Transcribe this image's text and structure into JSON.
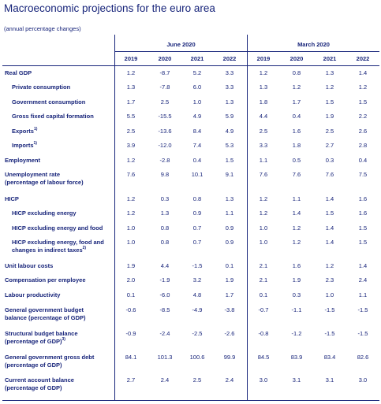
{
  "title": "Macroeconomic projections for the euro area",
  "subtitle": "(annual percentage changes)",
  "groups": [
    "June 2020",
    "March 2020"
  ],
  "years": [
    "2019",
    "2020",
    "2021",
    "2022",
    "2019",
    "2020",
    "2021",
    "2022"
  ],
  "rows": [
    {
      "label": "Real GDP",
      "values": [
        "1.2",
        "-8.7",
        "5.2",
        "3.3",
        "1.2",
        "0.8",
        "1.3",
        "1.4"
      ]
    },
    {
      "label": "Private consumption",
      "values": [
        "1.3",
        "-7.8",
        "6.0",
        "3.3",
        "1.3",
        "1.2",
        "1.2",
        "1.2"
      ]
    },
    {
      "label": "Government consumption",
      "values": [
        "1.7",
        "2.5",
        "1.0",
        "1.3",
        "1.8",
        "1.7",
        "1.5",
        "1.5"
      ]
    },
    {
      "label": "Gross fixed capital formation",
      "values": [
        "5.5",
        "-15.5",
        "4.9",
        "5.9",
        "4.4",
        "0.4",
        "1.9",
        "2.2"
      ]
    },
    {
      "label": "Exports",
      "sup": "1)",
      "values": [
        "2.5",
        "-13.6",
        "8.4",
        "4.9",
        "2.5",
        "1.6",
        "2.5",
        "2.6"
      ]
    },
    {
      "label": "Imports",
      "sup": "1)",
      "values": [
        "3.9",
        "-12.0",
        "7.4",
        "5.3",
        "3.3",
        "1.8",
        "2.7",
        "2.8"
      ]
    },
    {
      "label": "Employment",
      "values": [
        "1.2",
        "-2.8",
        "0.4",
        "1.5",
        "1.1",
        "0.5",
        "0.3",
        "0.4"
      ]
    },
    {
      "label": "Unemployment rate",
      "label2": "(percentage of labour force)",
      "values": [
        "7.6",
        "9.8",
        "10.1",
        "9.1",
        "7.6",
        "7.6",
        "7.6",
        "7.5"
      ]
    },
    {
      "label": "HICP",
      "values": [
        "1.2",
        "0.3",
        "0.8",
        "1.3",
        "1.2",
        "1.1",
        "1.4",
        "1.6"
      ]
    },
    {
      "label": "HICP excluding energy",
      "values": [
        "1.2",
        "1.3",
        "0.9",
        "1.1",
        "1.2",
        "1.4",
        "1.5",
        "1.6"
      ]
    },
    {
      "label": "HICP excluding energy and food",
      "values": [
        "1.0",
        "0.8",
        "0.7",
        "0.9",
        "1.0",
        "1.2",
        "1.4",
        "1.5"
      ]
    },
    {
      "label": "HICP excluding energy, food and",
      "label2": "changes in indirect taxes",
      "sup2": "2)",
      "values": [
        "1.0",
        "0.8",
        "0.7",
        "0.9",
        "1.0",
        "1.2",
        "1.4",
        "1.5"
      ]
    },
    {
      "label": "Unit labour costs",
      "values": [
        "1.9",
        "4.4",
        "-1.5",
        "0.1",
        "2.1",
        "1.6",
        "1.2",
        "1.4"
      ]
    },
    {
      "label": "Compensation per employee",
      "values": [
        "2.0",
        "-1.9",
        "3.2",
        "1.9",
        "2.1",
        "1.9",
        "2.3",
        "2.4"
      ]
    },
    {
      "label": "Labour productivity",
      "values": [
        "0.1",
        "-6.0",
        "4.8",
        "1.7",
        "0.1",
        "0.3",
        "1.0",
        "1.1"
      ]
    },
    {
      "label": "General government budget",
      "label2": "balance (percentage of GDP)",
      "values": [
        "-0.6",
        "-8.5",
        "-4.9",
        "-3.8",
        "-0.7",
        "-1.1",
        "-1.5",
        "-1.5"
      ]
    },
    {
      "label": "Structural budget balance",
      "label2": "(percentage of GDP)",
      "sup2": "3)",
      "values": [
        "-0.9",
        "-2.4",
        "-2.5",
        "-2.6",
        "-0.8",
        "-1.2",
        "-1.5",
        "-1.5"
      ]
    },
    {
      "label": "General government gross debt",
      "label2": "(percentage of GDP)",
      "values": [
        "84.1",
        "101.3",
        "100.6",
        "99.9",
        "84.5",
        "83.9",
        "83.4",
        "82.6"
      ]
    },
    {
      "label": "Current account balance",
      "label2": "(percentage of GDP)",
      "values": [
        "2.7",
        "2.4",
        "2.5",
        "2.4",
        "3.0",
        "3.1",
        "3.1",
        "3.0"
      ]
    }
  ],
  "colors": {
    "text": "#17247a",
    "shade": "#eef1fa",
    "rule": "#17247a"
  }
}
